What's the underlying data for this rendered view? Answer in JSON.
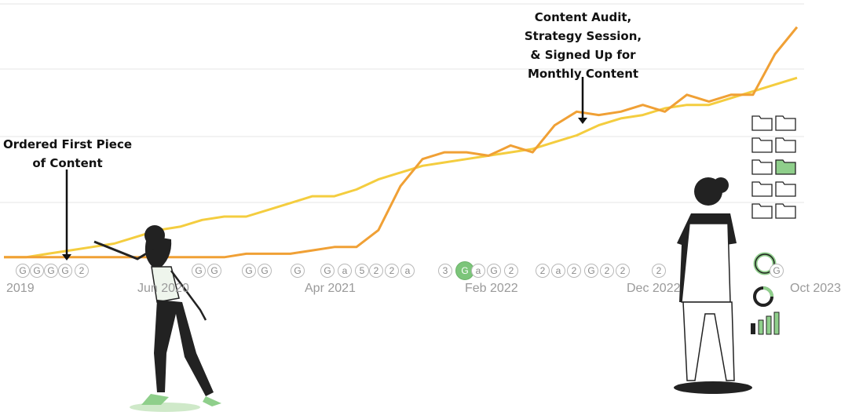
{
  "chart_data": {
    "type": "line",
    "x_ticks": [
      "2019",
      "Jun 2020",
      "Apr 2021",
      "Feb 2022",
      "Dec 2022",
      "Oct 2023"
    ],
    "series": [
      {
        "color": "#f0a035",
        "values": [
          4,
          4,
          4,
          4,
          4,
          4,
          4,
          4,
          4,
          4,
          4,
          5,
          5,
          5,
          6,
          7,
          7,
          12,
          25,
          33,
          35,
          35,
          34,
          37,
          35,
          43,
          47,
          46,
          47,
          49,
          47,
          52,
          50,
          52,
          52,
          64,
          72
        ]
      },
      {
        "color": "#f4cd3f",
        "values": [
          4,
          4,
          5,
          6,
          7,
          8,
          10,
          12,
          13,
          15,
          16,
          16,
          18,
          20,
          22,
          22,
          24,
          27,
          29,
          31,
          32,
          33,
          34,
          35,
          36,
          38,
          40,
          43,
          45,
          46,
          48,
          49,
          49,
          51,
          53,
          55,
          57
        ]
      }
    ],
    "ylim": [
      0,
      80
    ],
    "annotations": [
      {
        "lines": [
          "Ordered First Piece",
          "of Content"
        ]
      },
      {
        "lines": [
          "Content Audit,",
          "Strategy Session,",
          "& Signed Up for",
          "Monthly Content"
        ]
      }
    ],
    "markers": [
      "G",
      "G",
      "G",
      "G",
      "2",
      "G",
      "G",
      "G",
      "G",
      "G",
      "G",
      "a",
      "5",
      "2",
      "2",
      "a",
      "3",
      "G",
      "a",
      "G",
      "2",
      "2",
      "a",
      "2",
      "G",
      "2",
      "2",
      "2",
      "G"
    ]
  }
}
